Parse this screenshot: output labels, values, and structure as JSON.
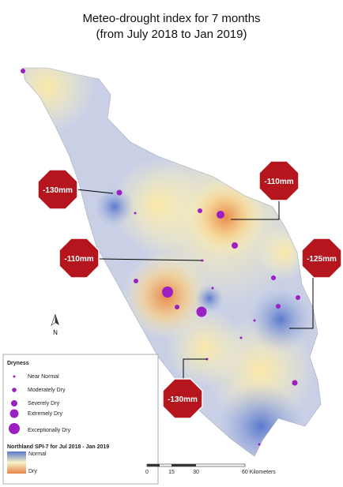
{
  "title": "Meteo-drought index for 7 months",
  "subtitle": "(from July 2018 to Jan 2019)",
  "callouts": [
    {
      "label": "-130mm"
    },
    {
      "label": "-110mm"
    },
    {
      "label": "-110mm"
    },
    {
      "label": "-125mm"
    },
    {
      "label": "-130mm"
    }
  ],
  "north_arrow": "N",
  "legend": {
    "title": "Dryness",
    "items": [
      "Near Normal",
      "Moderately Dry",
      "Severely Dry",
      "Extremely Dry",
      "Exceptionally Dry"
    ],
    "ramp_title": "Northland SPI-7 for Jul 2018 - Jan 2019",
    "ramp_labels": [
      "Normal",
      "Dry"
    ]
  },
  "scale_bar": {
    "labels": [
      "0",
      "15",
      "30",
      "60 Kilometers"
    ]
  }
}
